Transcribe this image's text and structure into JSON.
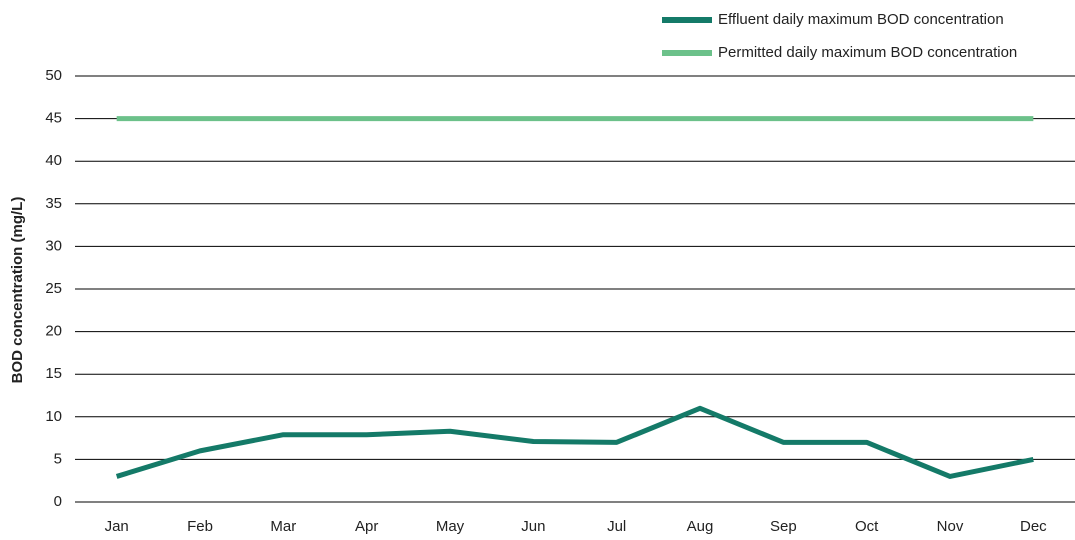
{
  "chart_data": {
    "type": "line",
    "y_label": "BOD concentration (mg/L)",
    "categories": [
      "Jan",
      "Feb",
      "Mar",
      "Apr",
      "May",
      "Jun",
      "Jul",
      "Aug",
      "Sep",
      "Oct",
      "Nov",
      "Dec"
    ],
    "series": [
      {
        "name": "Effluent daily maximum BOD concentration",
        "color": "#147a68",
        "values": [
          3,
          6,
          7.9,
          7.9,
          8.3,
          7.1,
          7,
          11,
          7,
          7,
          3,
          5
        ]
      },
      {
        "name": "Permitted daily maximum BOD concentration",
        "color": "#6cc18a",
        "values": [
          45,
          45,
          45,
          45,
          45,
          45,
          45,
          45,
          45,
          45,
          45,
          45
        ]
      }
    ],
    "ylim": [
      0,
      50
    ],
    "yticks": [
      0,
      5,
      10,
      15,
      20,
      25,
      30,
      35,
      40,
      45,
      50
    ],
    "grid": true,
    "legend": "top-right"
  }
}
